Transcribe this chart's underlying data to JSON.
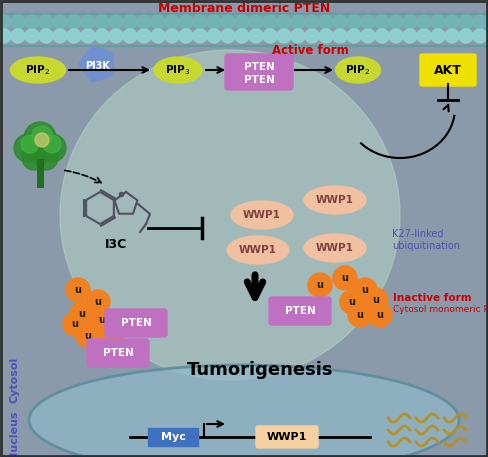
{
  "bg_color": "#8a9aaa",
  "cell_color": "#b8d8c8",
  "cell_alpha": 0.5,
  "nucleus_bg_color": "#90b8c8",
  "title_membrane": "Membrane dimeric PTEN",
  "title_active": "Active form",
  "title_inactive_line1": "Inactive form",
  "title_inactive_line2": "Cytosol monomeric PTEN",
  "title_tumori": "Tumorigenesis",
  "label_cytosol": "Cytosol",
  "label_nucleus": "Nucleus",
  "label_k27": "K27-linked\nubiquitination",
  "pip2_color": "#c8d830",
  "pip3_color": "#c8d830",
  "pi3k_color": "#7090d0",
  "pten_dimer_color": "#c070c0",
  "pten_mono_color": "#c070c0",
  "akt_color": "#f0e000",
  "wwp1_color": "#f0c0a0",
  "ubiq_color": "#f08020",
  "myc_color": "#4070c0",
  "wwp1_box_color": "#f5d0a0",
  "membrane_top_color": "#a8d0d0",
  "membrane_circle_color": "#70b8b8",
  "membrane_circle_color2": "#90d4d4",
  "border_color": "#303030"
}
